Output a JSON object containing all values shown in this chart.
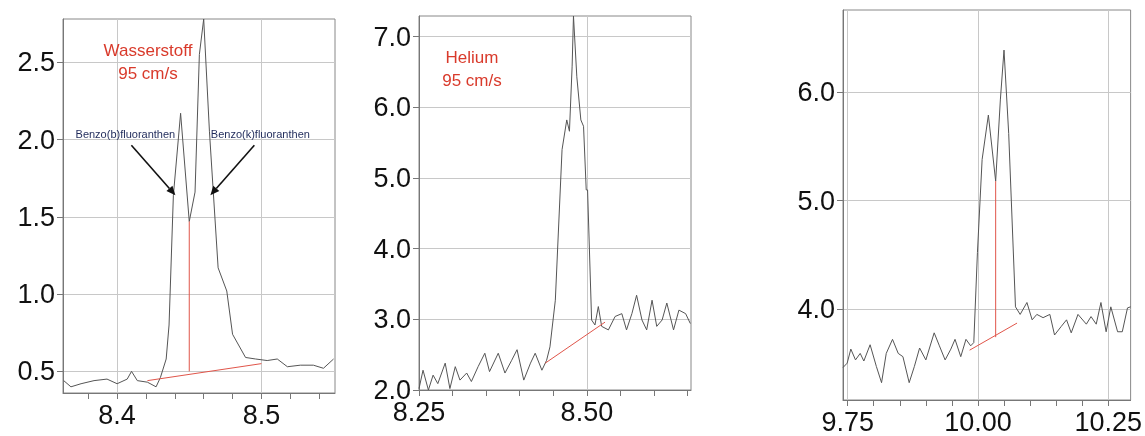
{
  "chart_data": [
    {
      "type": "line",
      "title": "Wasserstoff",
      "subtitle": "95 cm/s",
      "xlim": [
        8.3625,
        8.551
      ],
      "ylim": [
        0.36,
        2.78
      ],
      "grid": true,
      "xticks": [
        {
          "value": 8.38,
          "label": null
        },
        {
          "value": 8.4,
          "label": "8.4"
        },
        {
          "value": 8.42,
          "label": null
        },
        {
          "value": 8.44,
          "label": null
        },
        {
          "value": 8.46,
          "label": null
        },
        {
          "value": 8.48,
          "label": null
        },
        {
          "value": 8.5,
          "label": "8.5"
        },
        {
          "value": 8.52,
          "label": null
        },
        {
          "value": 8.54,
          "label": null
        }
      ],
      "yticks": [
        0.5,
        {
          "value": 1,
          "label": "1.0"
        },
        1.5,
        {
          "value": 2,
          "label": "2.0"
        },
        2.5
      ],
      "annotations": [
        {
          "text": "Benzo(b)fluoranthen",
          "x": 8.439,
          "y": 1.64
        },
        {
          "text": "Benzo(k)fluoranthen",
          "x": 8.466,
          "y": 1.64
        }
      ],
      "series": [
        {
          "color": "#555555",
          "x": [
            8.363,
            8.368,
            8.375,
            8.384,
            8.393,
            8.4,
            8.407,
            8.41,
            8.414,
            8.421,
            8.427,
            8.43,
            8.434,
            8.436,
            8.439,
            8.444,
            8.45,
            8.454,
            8.457,
            8.46,
            8.464,
            8.47,
            8.476,
            8.48,
            8.489,
            8.496,
            8.504,
            8.511,
            8.518,
            8.527,
            8.536,
            8.543,
            8.55
          ],
          "values": [
            0.44,
            0.4,
            0.42,
            0.44,
            0.45,
            0.42,
            0.45,
            0.5,
            0.44,
            0.43,
            0.4,
            0.46,
            0.58,
            0.8,
            1.64,
            2.17,
            1.47,
            1.66,
            2.55,
            2.78,
            2.05,
            1.17,
            1.02,
            0.74,
            0.59,
            0.58,
            0.57,
            0.58,
            0.53,
            0.54,
            0.54,
            0.52,
            0.58
          ]
        },
        {
          "color": "#e0554a",
          "x": [
            8.421,
            8.5
          ],
          "values": [
            0.44,
            0.55
          ]
        },
        {
          "color": "#e0554a",
          "x": [
            8.45,
            8.45
          ],
          "values": [
            0.5,
            1.47
          ]
        }
      ]
    },
    {
      "type": "line",
      "title": "Helium",
      "subtitle": "95 cm/s",
      "xlim": [
        8.25,
        8.655
      ],
      "ylim": [
        2.0,
        7.29
      ],
      "grid": true,
      "xticks": [
        {
          "value": 8.25,
          "label": "8.25"
        },
        {
          "value": 8.3,
          "label": null
        },
        {
          "value": 8.35,
          "label": null
        },
        {
          "value": 8.4,
          "label": null
        },
        {
          "value": 8.45,
          "label": null
        },
        {
          "value": 8.5,
          "label": "8.50"
        },
        {
          "value": 8.55,
          "label": null
        },
        {
          "value": 8.6,
          "label": null
        },
        {
          "value": 8.65,
          "label": null
        }
      ],
      "yticks": [
        {
          "value": 2,
          "label": "2.0"
        },
        {
          "value": 3,
          "label": "3.0"
        },
        {
          "value": 4,
          "label": "4.0"
        },
        {
          "value": 5,
          "label": "5.0"
        },
        {
          "value": 6,
          "label": "6.0"
        },
        {
          "value": 7,
          "label": "7.0"
        }
      ],
      "series": [
        {
          "color": "#555555",
          "x": [
            8.25,
            8.256,
            8.264,
            8.271,
            8.278,
            8.289,
            8.296,
            8.304,
            8.311,
            8.321,
            8.328,
            8.338,
            8.348,
            8.355,
            8.368,
            8.378,
            8.388,
            8.396,
            8.406,
            8.416,
            8.423,
            8.433,
            8.44,
            8.445,
            8.453,
            8.463,
            8.47,
            8.474,
            8.478,
            8.48,
            8.485,
            8.491,
            8.495,
            8.499,
            8.501,
            8.507,
            8.512,
            8.517,
            8.522,
            8.532,
            8.542,
            8.552,
            8.559,
            8.567,
            8.574,
            8.582,
            8.589,
            8.597,
            8.604,
            8.612,
            8.619,
            8.629,
            8.637,
            8.647,
            8.654
          ],
          "values": [
            2.02,
            2.28,
            2.0,
            2.21,
            2.09,
            2.38,
            2.02,
            2.33,
            2.14,
            2.24,
            2.12,
            2.33,
            2.52,
            2.26,
            2.52,
            2.24,
            2.42,
            2.57,
            2.14,
            2.38,
            2.52,
            2.28,
            2.42,
            2.61,
            3.27,
            5.4,
            5.82,
            5.66,
            6.58,
            7.29,
            6.43,
            5.82,
            5.73,
            4.83,
            4.83,
            2.99,
            2.92,
            3.18,
            2.9,
            2.85,
            3.04,
            3.08,
            2.85,
            3.08,
            3.34,
            2.99,
            2.85,
            3.27,
            2.9,
            2.99,
            3.23,
            2.85,
            3.13,
            3.08,
            2.94
          ]
        },
        {
          "color": "#e0554a",
          "x": [
            8.438,
            8.527
          ],
          "values": [
            2.38,
            2.96
          ]
        }
      ]
    },
    {
      "type": "line",
      "xlim": [
        9.741,
        10.293
      ],
      "ylim": [
        3.16,
        6.76
      ],
      "grid": true,
      "xticks": [
        {
          "value": 9.75,
          "label": "9.75"
        },
        {
          "value": 9.8,
          "label": null
        },
        {
          "value": 9.85,
          "label": null
        },
        {
          "value": 9.9,
          "label": null
        },
        {
          "value": 9.95,
          "label": null
        },
        {
          "value": 10,
          "label": "10.00"
        },
        {
          "value": 10.05,
          "label": null
        },
        {
          "value": 10.1,
          "label": null
        },
        {
          "value": 10.15,
          "label": null
        },
        {
          "value": 10.2,
          "label": null
        },
        {
          "value": 10.25,
          "label": "10.25"
        }
      ],
      "yticks": [
        {
          "value": 4,
          "label": "4.0"
        },
        {
          "value": 5,
          "label": "5.0"
        },
        {
          "value": 6,
          "label": "6.0"
        }
      ],
      "series": [
        {
          "color": "#555555",
          "x": [
            9.741,
            9.749,
            9.756,
            9.765,
            9.774,
            9.781,
            9.793,
            9.805,
            9.815,
            9.824,
            9.836,
            9.847,
            9.856,
            9.868,
            9.878,
            9.888,
            9.9,
            9.916,
            9.926,
            9.937,
            9.948,
            9.956,
            9.967,
            9.977,
            9.986,
            9.992,
            9.999,
            10.008,
            10.02,
            10.034,
            10.043,
            10.05,
            10.059,
            10.072,
            10.081,
            10.094,
            10.104,
            10.113,
            10.125,
            10.138,
            10.147,
            10.16,
            10.17,
            10.179,
            10.192,
            10.208,
            10.217,
            10.227,
            10.236,
            10.246,
            10.255,
            10.268,
            10.277,
            10.287,
            10.293
          ],
          "values": [
            3.46,
            3.5,
            3.63,
            3.53,
            3.59,
            3.52,
            3.67,
            3.47,
            3.32,
            3.59,
            3.72,
            3.59,
            3.56,
            3.32,
            3.47,
            3.64,
            3.53,
            3.78,
            3.66,
            3.53,
            3.63,
            3.72,
            3.56,
            3.72,
            3.66,
            3.69,
            4.52,
            5.38,
            5.79,
            5.18,
            5.93,
            6.39,
            5.62,
            4.02,
            3.95,
            4.06,
            3.9,
            3.95,
            3.92,
            3.95,
            3.76,
            3.84,
            3.9,
            3.78,
            3.95,
            3.86,
            3.93,
            3.86,
            4.06,
            3.79,
            4.02,
            3.79,
            3.79,
            4.01,
            4.02
          ]
        },
        {
          "color": "#e0554a",
          "x": [
            9.984,
            10.075
          ],
          "values": [
            3.62,
            3.87
          ]
        },
        {
          "color": "#e0554a",
          "x": [
            10.034,
            10.034
          ],
          "values": [
            3.74,
            5.18
          ]
        }
      ]
    }
  ]
}
